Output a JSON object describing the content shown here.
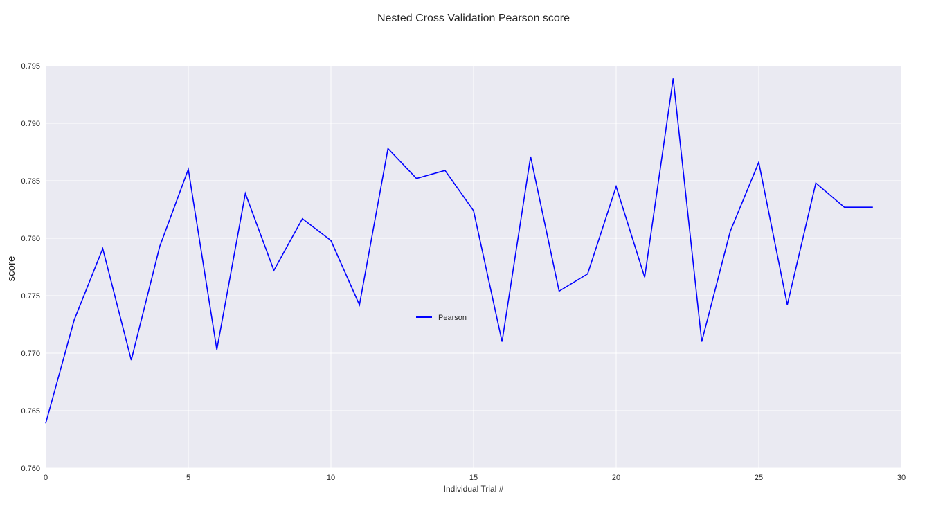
{
  "chart_data": {
    "type": "line",
    "title": "Nested Cross Validation Pearson score",
    "xlabel": "Individual Trial #",
    "ylabel": "score",
    "xlim": [
      0,
      30
    ],
    "ylim": [
      0.76,
      0.795
    ],
    "xticks": [
      "0",
      "5",
      "10",
      "15",
      "20",
      "25",
      "30"
    ],
    "yticks": [
      "0.760",
      "0.765",
      "0.770",
      "0.775",
      "0.780",
      "0.785",
      "0.790",
      "0.795"
    ],
    "grid": true,
    "legend_position": "center",
    "series": [
      {
        "name": "Pearson",
        "color": "#0000ff",
        "x": [
          0,
          1,
          2,
          3,
          4,
          5,
          6,
          7,
          8,
          9,
          10,
          11,
          12,
          13,
          14,
          15,
          16,
          17,
          18,
          19,
          20,
          21,
          22,
          23,
          24,
          25,
          26,
          27,
          28,
          29
        ],
        "values": [
          0.7639,
          0.7729,
          0.7791,
          0.7694,
          0.7793,
          0.786,
          0.7703,
          0.7839,
          0.7772,
          0.7817,
          0.7798,
          0.7742,
          0.7878,
          0.7852,
          0.7859,
          0.7824,
          0.771,
          0.7871,
          0.7754,
          0.7769,
          0.7845,
          0.7766,
          0.7939,
          0.771,
          0.7806,
          0.7866,
          0.7742,
          0.7848,
          0.7827,
          0.7827
        ]
      }
    ]
  }
}
